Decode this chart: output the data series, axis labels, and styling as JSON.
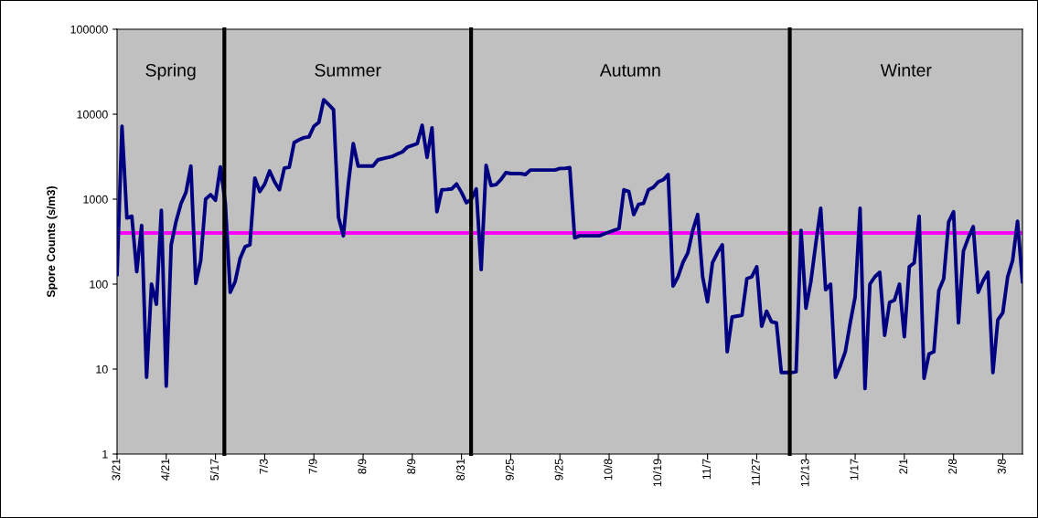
{
  "chart_data": {
    "type": "line",
    "ylabel": "Spore Counts (s/m3)",
    "log": "y",
    "grid": false,
    "marker": "none",
    "line_style": "solid",
    "categories": [
      "3/21",
      null,
      null,
      null,
      null,
      null,
      null,
      null,
      null,
      null,
      "4/21",
      null,
      null,
      null,
      null,
      null,
      null,
      null,
      null,
      null,
      "5/17",
      null,
      null,
      null,
      null,
      null,
      null,
      null,
      null,
      null,
      "7/3",
      null,
      null,
      null,
      null,
      null,
      null,
      null,
      null,
      null,
      "7/9",
      null,
      null,
      null,
      null,
      null,
      null,
      null,
      null,
      null,
      "8/9",
      null,
      null,
      null,
      null,
      null,
      null,
      null,
      null,
      null,
      "8/9",
      null,
      null,
      null,
      null,
      null,
      null,
      null,
      null,
      null,
      "8/31",
      null,
      null,
      null,
      null,
      null,
      null,
      null,
      null,
      null,
      "9/25",
      null,
      null,
      null,
      null,
      null,
      null,
      null,
      null,
      null,
      "9/25",
      null,
      null,
      null,
      null,
      null,
      null,
      null,
      null,
      null,
      "10/8",
      null,
      null,
      null,
      null,
      null,
      null,
      null,
      null,
      null,
      "10/19",
      null,
      null,
      null,
      null,
      null,
      null,
      null,
      null,
      null,
      "11/7",
      null,
      null,
      null,
      null,
      null,
      null,
      null,
      null,
      null,
      "11/27",
      null,
      null,
      null,
      null,
      null,
      null,
      null,
      null,
      null,
      "12/13",
      null,
      null,
      null,
      null,
      null,
      null,
      null,
      null,
      null,
      "1/17",
      null,
      null,
      null,
      null,
      null,
      null,
      null,
      null,
      null,
      "2/1",
      null,
      null,
      null,
      null,
      null,
      null,
      null,
      null,
      null,
      "2/8",
      null,
      null,
      null,
      null,
      null,
      null,
      null,
      null,
      null,
      "3/8",
      null,
      null,
      null,
      null
    ],
    "ylim": [
      1,
      100000
    ],
    "yticks": [
      1,
      10,
      100,
      1000,
      10000,
      100000
    ],
    "annotations": [
      "Spring",
      "Summer",
      "Autumn",
      "Winter"
    ],
    "ref_lines": [
      {
        "axis": "y",
        "value": 400,
        "color": "#ff00ff"
      }
    ],
    "series": [
      {
        "color": "#000080",
        "values": [
          130,
          7200,
          600,
          630,
          140,
          490,
          8,
          100,
          58,
          740,
          6.3,
          290,
          550,
          890,
          1200,
          2450,
          102,
          190,
          1000,
          1130,
          970,
          2400,
          900,
          80,
          107,
          200,
          275,
          290,
          1770,
          1230,
          1500,
          2150,
          1600,
          1290,
          2330,
          2370,
          4650,
          5000,
          5300,
          5400,
          7200,
          8000,
          14800,
          13000,
          11300,
          610,
          370,
          1500,
          4500,
          2450,
          2450,
          2450,
          2450,
          2900,
          3000,
          3100,
          3200,
          3400,
          3600,
          4100,
          4300,
          4500,
          7400,
          3100,
          6900,
          710,
          1290,
          1300,
          1320,
          1510,
          1200,
          910,
          1000,
          1320,
          148,
          2500,
          1450,
          1480,
          1700,
          2050,
          2000,
          2000,
          2000,
          1950,
          2200,
          2200,
          2200,
          2200,
          2200,
          2200,
          2300,
          2300,
          2350,
          350,
          370,
          370,
          370,
          370,
          370,
          390,
          410,
          430,
          450,
          1290,
          1230,
          660,
          870,
          890,
          1290,
          1380,
          1600,
          1690,
          1950,
          95,
          122,
          180,
          233,
          430,
          660,
          122,
          62,
          178,
          233,
          290,
          16,
          41,
          42,
          43,
          116,
          122,
          160,
          32,
          48,
          36,
          35,
          9.1,
          9.1,
          9.1,
          9.3,
          430,
          52,
          107,
          300,
          780,
          86,
          100,
          8,
          11,
          16,
          35,
          71,
          780,
          5.9,
          100,
          122,
          138,
          25,
          61,
          65,
          100,
          24,
          160,
          178,
          630,
          7.8,
          15,
          16,
          84,
          116,
          540,
          710,
          35,
          245,
          350,
          475,
          80,
          110,
          138,
          9.1,
          38,
          46,
          122,
          190,
          550,
          107
        ]
      }
    ]
  }
}
